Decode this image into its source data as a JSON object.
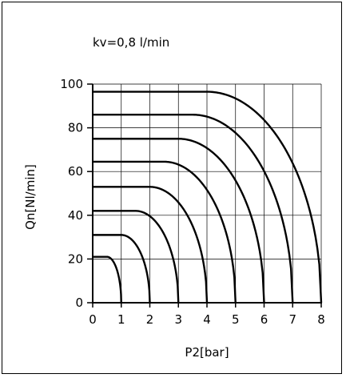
{
  "chart_data": {
    "type": "line",
    "title": "kv=0,8 l/min",
    "xlabel": "P2[bar]",
    "ylabel": "Qn[Nl/min]",
    "xlim": [
      0,
      8
    ],
    "ylim": [
      0,
      100
    ],
    "xticks": [
      0,
      1,
      2,
      3,
      4,
      5,
      6,
      7,
      8
    ],
    "yticks": [
      0,
      20,
      40,
      60,
      80,
      100
    ],
    "grid": true,
    "line_color": "#000000",
    "series": [
      {
        "p1": 1,
        "qmax": 21
      },
      {
        "p1": 2,
        "qmax": 31
      },
      {
        "p1": 3,
        "qmax": 42
      },
      {
        "p1": 4,
        "qmax": 53
      },
      {
        "p1": 5,
        "qmax": 64.5
      },
      {
        "p1": 6,
        "qmax": 75
      },
      {
        "p1": 7,
        "qmax": 86
      },
      {
        "p1": 8,
        "qmax": 96.5
      }
    ]
  }
}
